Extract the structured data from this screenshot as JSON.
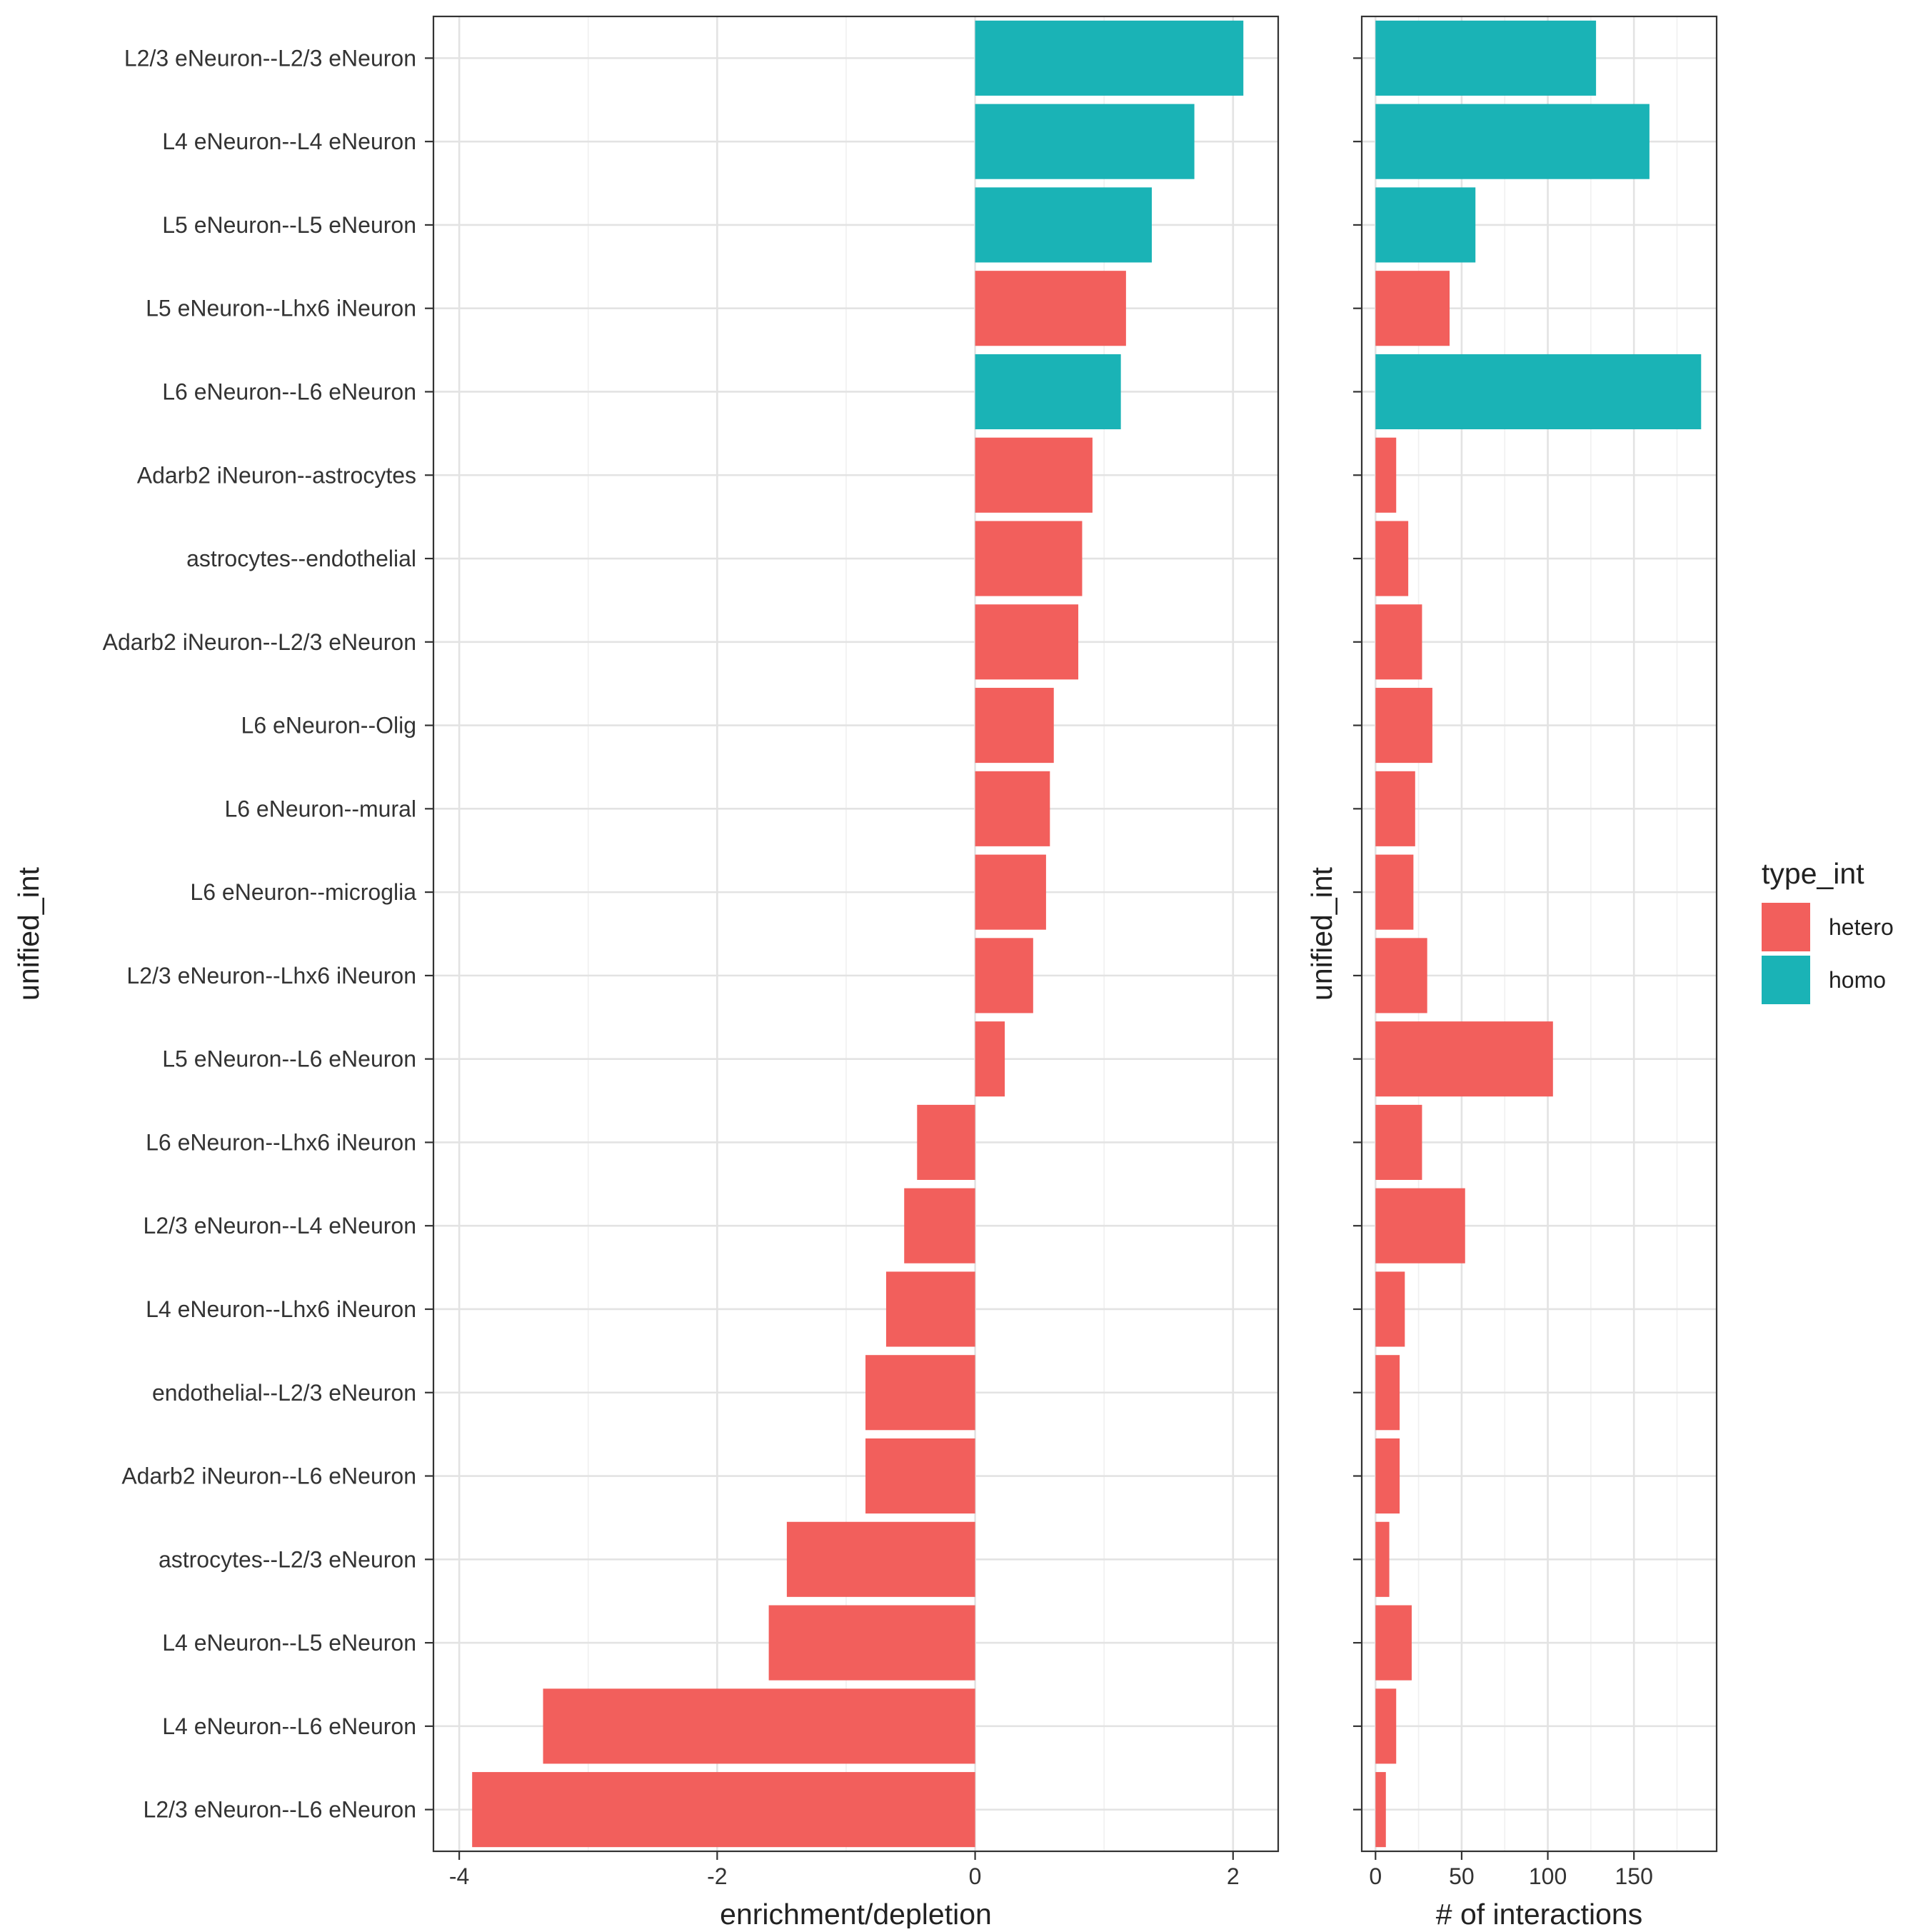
{
  "colors": {
    "hetero": "#F25F5C",
    "homo": "#1AB3B6",
    "grid_major": "#E3E3E3",
    "grid_minor": "#F0F0F0",
    "panel_border": "#333333",
    "text": "#222222",
    "axis_text": "#333333"
  },
  "chart_data": [
    {
      "type": "bar",
      "orientation": "horizontal",
      "xlabel": "enrichment/depletion",
      "ylabel": "unified_int",
      "xlim": [
        -4.2,
        2.35
      ],
      "xticks": [
        -4,
        -2,
        0,
        2
      ],
      "xtick_labels": [
        "-4",
        "-2",
        "0",
        "2"
      ],
      "grid": true,
      "categories": [
        "L2/3 eNeuron--L2/3 eNeuron",
        "L4 eNeuron--L4 eNeuron",
        "L5 eNeuron--L5 eNeuron",
        "L5 eNeuron--Lhx6 iNeuron",
        "L6 eNeuron--L6 eNeuron",
        "Adarb2 iNeuron--astrocytes",
        "astrocytes--endothelial",
        "Adarb2 iNeuron--L2/3 eNeuron",
        "L6 eNeuron--Olig",
        "L6 eNeuron--mural",
        "L6 eNeuron--microglia",
        "L2/3 eNeuron--Lhx6 iNeuron",
        "L5 eNeuron--L6 eNeuron",
        "L6 eNeuron--Lhx6 iNeuron",
        "L2/3 eNeuron--L4 eNeuron",
        "L4 eNeuron--Lhx6 iNeuron",
        "endothelial--L2/3 eNeuron",
        "Adarb2 iNeuron--L6 eNeuron",
        "astrocytes--L2/3 eNeuron",
        "L4 eNeuron--L5 eNeuron",
        "L4 eNeuron--L6 eNeuron",
        "L2/3 eNeuron--L6 eNeuron"
      ],
      "values": [
        2.08,
        1.7,
        1.37,
        1.17,
        1.13,
        0.91,
        0.83,
        0.8,
        0.61,
        0.58,
        0.55,
        0.45,
        0.23,
        -0.45,
        -0.55,
        -0.69,
        -0.85,
        -0.85,
        -1.46,
        -1.6,
        -3.35,
        -3.9
      ],
      "type_int": [
        "homo",
        "homo",
        "homo",
        "hetero",
        "homo",
        "hetero",
        "hetero",
        "hetero",
        "hetero",
        "hetero",
        "hetero",
        "hetero",
        "hetero",
        "hetero",
        "hetero",
        "hetero",
        "hetero",
        "hetero",
        "hetero",
        "hetero",
        "hetero",
        "hetero"
      ]
    },
    {
      "type": "bar",
      "orientation": "horizontal",
      "xlabel": "# of interactions",
      "ylabel": "unified_int",
      "xlim": [
        -8,
        198
      ],
      "xticks": [
        0,
        50,
        100,
        150
      ],
      "xtick_labels": [
        "0",
        "50",
        "100",
        "150"
      ],
      "grid": true,
      "values": [
        128,
        159,
        58,
        43,
        189,
        12,
        19,
        27,
        33,
        23,
        22,
        30,
        103,
        27,
        52,
        17,
        14,
        14,
        8,
        21,
        12,
        6
      ]
    }
  ],
  "legend": {
    "title": "type_int",
    "placement": "right",
    "items": [
      {
        "key": "hetero",
        "label": "hetero"
      },
      {
        "key": "homo",
        "label": "homo"
      }
    ]
  }
}
